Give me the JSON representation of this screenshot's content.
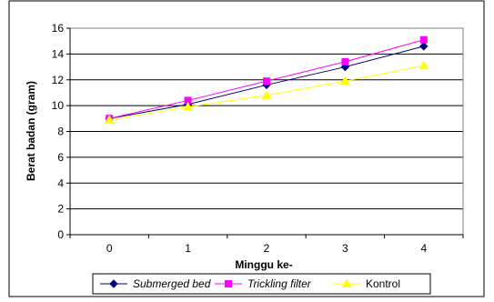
{
  "chart_data": {
    "type": "line",
    "xlabel": "Minggu ke-",
    "ylabel": "Berat badan (gram)",
    "categories": [
      "0",
      "1",
      "2",
      "3",
      "4"
    ],
    "ylim": [
      0,
      16
    ],
    "yticks": [
      "0",
      "2",
      "4",
      "6",
      "8",
      "10",
      "12",
      "14",
      "16"
    ],
    "grid": "horizontal",
    "legend_position": "bottom",
    "series": [
      {
        "name": "Submerged bed",
        "italic": true,
        "color": "#000080",
        "marker": "diamond",
        "values": [
          9.0,
          10.1,
          11.6,
          13.0,
          14.6
        ]
      },
      {
        "name": "Trickling filter",
        "italic": true,
        "color": "#ff00ff",
        "marker": "square",
        "values": [
          9.0,
          10.4,
          11.9,
          13.4,
          15.1
        ]
      },
      {
        "name": "Kontrol",
        "italic": false,
        "color": "#ffff00",
        "marker": "triangle",
        "values": [
          8.9,
          9.9,
          10.8,
          11.9,
          13.1
        ]
      }
    ]
  }
}
